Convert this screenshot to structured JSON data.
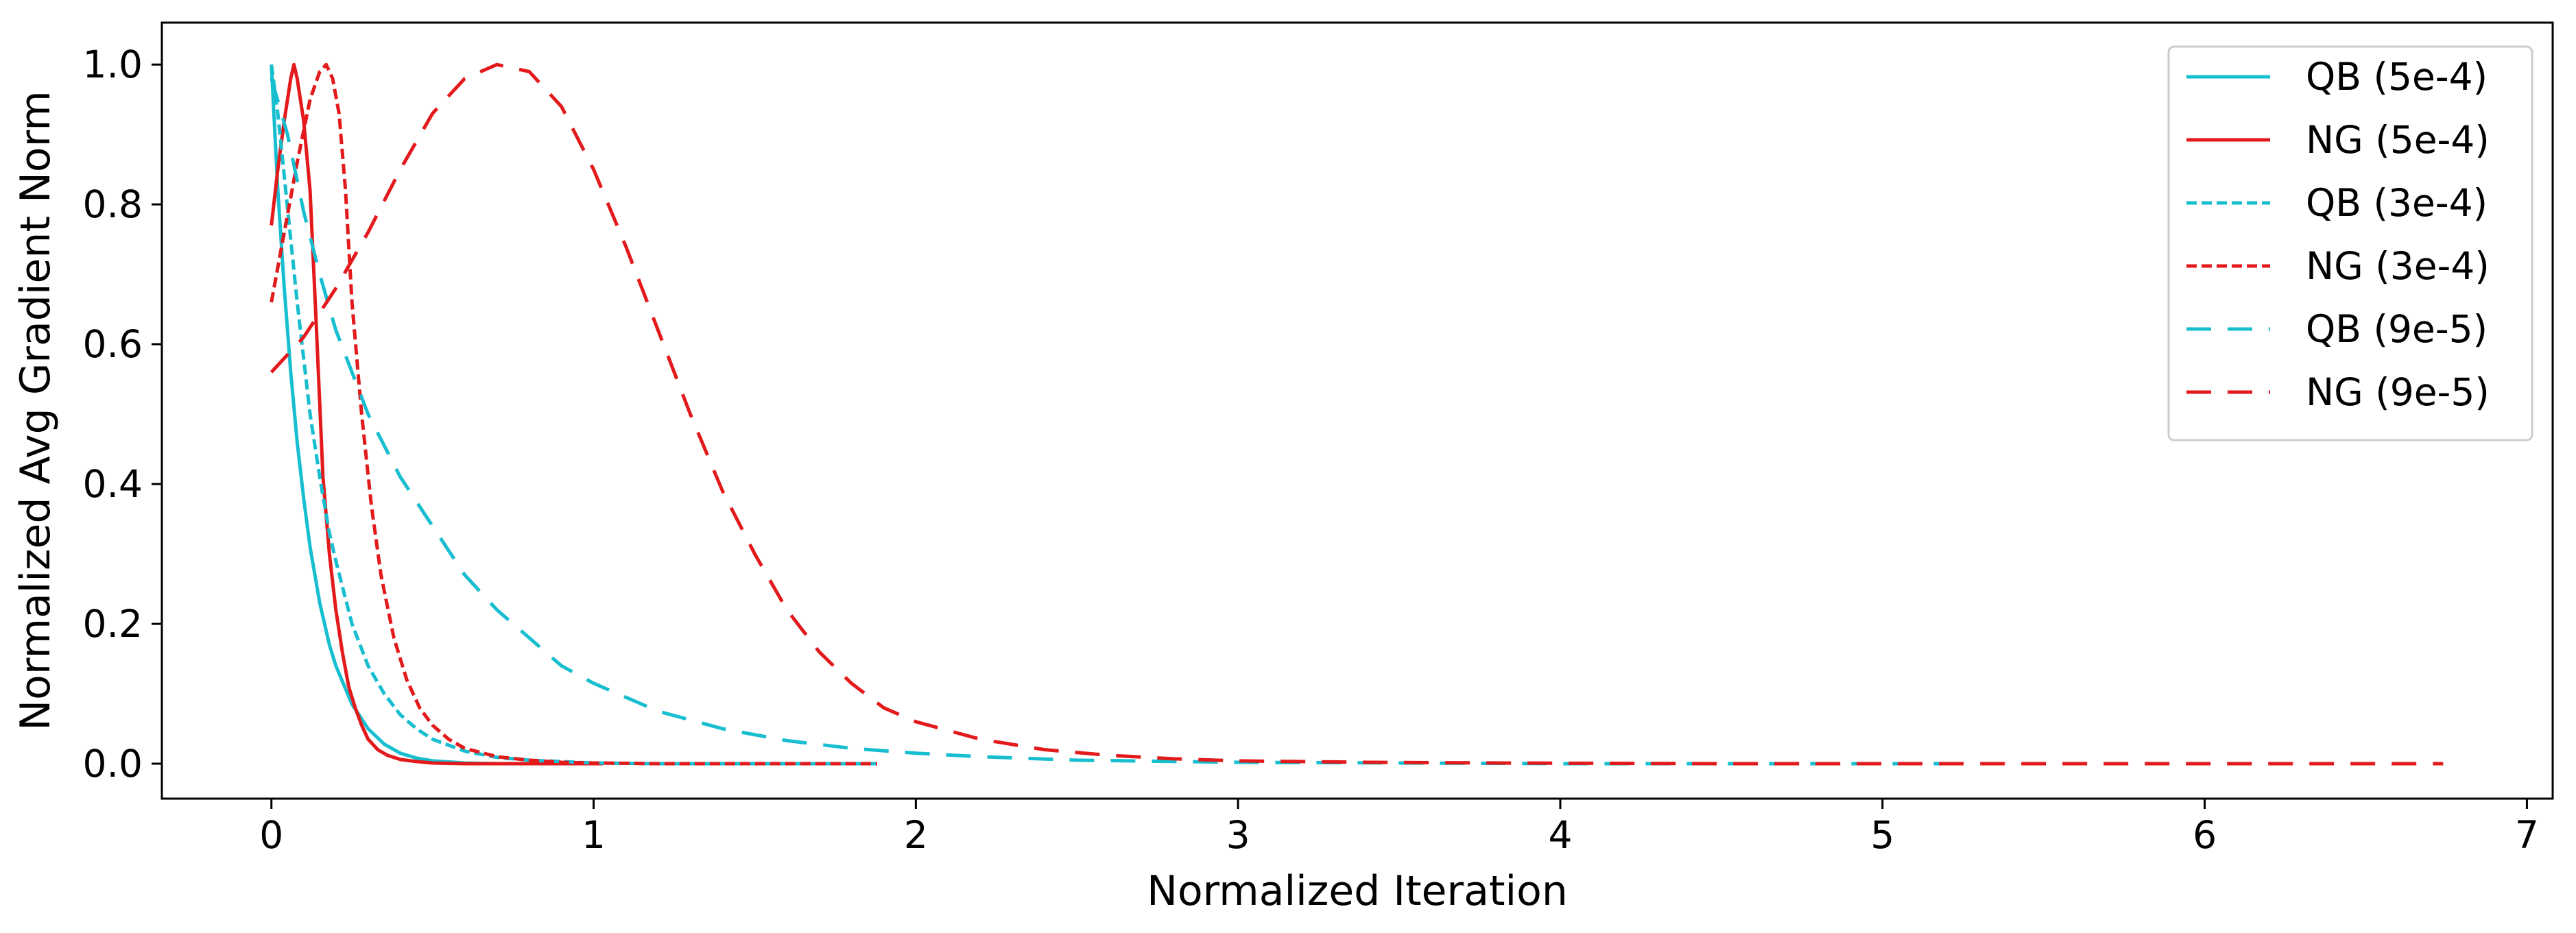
{
  "chart_data": {
    "type": "line",
    "title": "",
    "xlabel": "Normalized Iteration",
    "ylabel": "Normalized Avg Gradient Norm",
    "xlim": [
      -0.34,
      7.08
    ],
    "ylim": [
      -0.05,
      1.06
    ],
    "xticks": [
      0,
      1,
      2,
      3,
      4,
      5,
      6,
      7
    ],
    "yticks": [
      0.0,
      0.2,
      0.4,
      0.6,
      0.8,
      1.0
    ],
    "grid": false,
    "legend_position": "top-right",
    "series": [
      {
        "name": "QB (5e-4)",
        "color": "#17becf",
        "dash": "solid",
        "x": [
          0.0,
          0.02,
          0.04,
          0.06,
          0.08,
          0.1,
          0.12,
          0.15,
          0.18,
          0.2,
          0.25,
          0.3,
          0.35,
          0.4,
          0.45,
          0.5,
          0.6,
          0.7,
          0.8,
          0.9,
          1.0
        ],
        "y": [
          1.0,
          0.82,
          0.68,
          0.56,
          0.46,
          0.38,
          0.31,
          0.23,
          0.17,
          0.14,
          0.085,
          0.05,
          0.028,
          0.015,
          0.008,
          0.004,
          0.001,
          0.0,
          0.0,
          0.0,
          0.0
        ]
      },
      {
        "name": "NG (5e-4)",
        "color": "#e31a1c",
        "dash": "solid",
        "x": [
          0.0,
          0.02,
          0.04,
          0.06,
          0.07,
          0.08,
          0.1,
          0.12,
          0.14,
          0.16,
          0.18,
          0.2,
          0.22,
          0.24,
          0.26,
          0.28,
          0.3,
          0.33,
          0.36,
          0.4,
          0.45,
          0.5,
          0.6,
          0.7,
          0.8,
          0.9,
          1.0,
          1.03
        ],
        "y": [
          0.77,
          0.85,
          0.92,
          0.98,
          1.0,
          0.98,
          0.92,
          0.82,
          0.62,
          0.41,
          0.3,
          0.22,
          0.16,
          0.11,
          0.08,
          0.055,
          0.035,
          0.02,
          0.012,
          0.006,
          0.003,
          0.001,
          0.0,
          0.0,
          0.0,
          0.0,
          0.0,
          0.0
        ]
      },
      {
        "name": "QB (3e-4)",
        "color": "#17becf",
        "dash": "dashed",
        "x": [
          0.0,
          0.02,
          0.04,
          0.06,
          0.08,
          0.1,
          0.12,
          0.15,
          0.18,
          0.2,
          0.25,
          0.3,
          0.35,
          0.4,
          0.45,
          0.5,
          0.6,
          0.7,
          0.8,
          0.9,
          1.0,
          1.2,
          1.4,
          1.6,
          1.8,
          1.88
        ],
        "y": [
          1.0,
          0.93,
          0.84,
          0.75,
          0.66,
          0.58,
          0.5,
          0.41,
          0.33,
          0.29,
          0.2,
          0.14,
          0.1,
          0.07,
          0.05,
          0.035,
          0.018,
          0.009,
          0.005,
          0.003,
          0.001,
          0.0,
          0.0,
          0.0,
          0.0,
          0.0
        ]
      },
      {
        "name": "NG (3e-4)",
        "color": "#e31a1c",
        "dash": "dashed",
        "x": [
          0.0,
          0.04,
          0.08,
          0.12,
          0.15,
          0.17,
          0.19,
          0.21,
          0.23,
          0.25,
          0.28,
          0.31,
          0.34,
          0.38,
          0.42,
          0.46,
          0.5,
          0.55,
          0.6,
          0.7,
          0.8,
          0.9,
          1.0,
          1.2,
          1.4,
          1.6,
          1.8,
          1.88
        ],
        "y": [
          0.66,
          0.76,
          0.86,
          0.95,
          0.99,
          1.0,
          0.98,
          0.93,
          0.82,
          0.66,
          0.5,
          0.37,
          0.27,
          0.18,
          0.12,
          0.08,
          0.055,
          0.035,
          0.022,
          0.01,
          0.005,
          0.002,
          0.001,
          0.0,
          0.0,
          0.0,
          0.0,
          0.0
        ]
      },
      {
        "name": "QB (9e-5)",
        "color": "#17becf",
        "dash": "longdash",
        "x": [
          0.0,
          0.05,
          0.1,
          0.15,
          0.2,
          0.3,
          0.4,
          0.5,
          0.6,
          0.7,
          0.8,
          0.9,
          1.0,
          1.2,
          1.4,
          1.6,
          1.8,
          2.0,
          2.2,
          2.5,
          3.0,
          3.5,
          4.0,
          4.5,
          5.0,
          5.18
        ],
        "y": [
          0.98,
          0.9,
          0.79,
          0.7,
          0.62,
          0.5,
          0.41,
          0.34,
          0.27,
          0.22,
          0.18,
          0.14,
          0.115,
          0.075,
          0.05,
          0.033,
          0.022,
          0.015,
          0.01,
          0.005,
          0.002,
          0.001,
          0.0,
          0.0,
          0.0,
          0.0
        ]
      },
      {
        "name": "NG (9e-5)",
        "color": "#e31a1c",
        "dash": "longdash",
        "x": [
          0.0,
          0.1,
          0.2,
          0.3,
          0.4,
          0.5,
          0.6,
          0.7,
          0.8,
          0.9,
          1.0,
          1.1,
          1.2,
          1.3,
          1.4,
          1.5,
          1.6,
          1.7,
          1.8,
          1.9,
          2.0,
          2.2,
          2.4,
          2.6,
          2.8,
          3.0,
          3.4,
          3.8,
          4.5,
          5.5,
          6.74
        ],
        "y": [
          0.56,
          0.61,
          0.68,
          0.76,
          0.85,
          0.93,
          0.98,
          1.0,
          0.99,
          0.94,
          0.85,
          0.74,
          0.62,
          0.5,
          0.39,
          0.3,
          0.22,
          0.16,
          0.115,
          0.08,
          0.06,
          0.035,
          0.02,
          0.012,
          0.007,
          0.004,
          0.002,
          0.001,
          0.0,
          0.0,
          0.0
        ]
      }
    ]
  }
}
